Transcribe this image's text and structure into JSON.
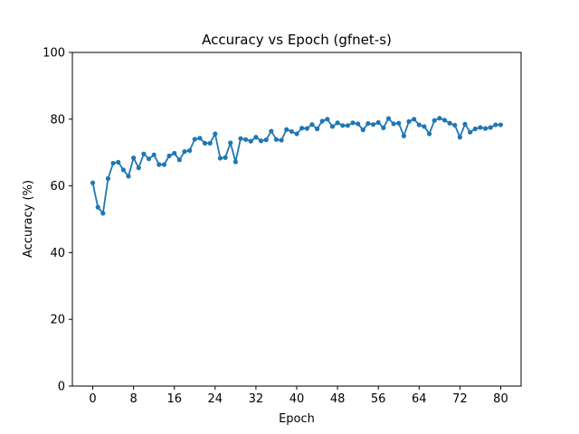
{
  "chart_data": {
    "type": "line",
    "title": "Accuracy vs Epoch  (gfnet-s)",
    "xlabel": "Epoch",
    "ylabel": "Accuracy (%)",
    "xlim": [
      -4,
      84
    ],
    "ylim": [
      0,
      100
    ],
    "xticks": [
      0,
      8,
      16,
      24,
      32,
      40,
      48,
      56,
      64,
      72,
      80
    ],
    "yticks": [
      0,
      20,
      40,
      60,
      80,
      100
    ],
    "grid": false,
    "color": "#1f77b4",
    "marker": "circle",
    "x": [
      0,
      1,
      2,
      3,
      4,
      5,
      6,
      7,
      8,
      9,
      10,
      11,
      12,
      13,
      14,
      15,
      16,
      17,
      18,
      19,
      20,
      21,
      22,
      23,
      24,
      25,
      26,
      27,
      28,
      29,
      30,
      31,
      32,
      33,
      34,
      35,
      36,
      37,
      38,
      39,
      40,
      41,
      42,
      43,
      44,
      45,
      46,
      47,
      48,
      49,
      50,
      51,
      52,
      53,
      54,
      55,
      56,
      57,
      58,
      59,
      60,
      61,
      62,
      63,
      64,
      65,
      66,
      67,
      68,
      69,
      70,
      71,
      72,
      73,
      74,
      75,
      76,
      77,
      78,
      79,
      80
    ],
    "y": [
      60.9,
      53.6,
      51.8,
      62.2,
      66.8,
      67.1,
      64.8,
      62.9,
      68.4,
      65.4,
      69.6,
      68.1,
      69.3,
      66.4,
      66.4,
      69.0,
      69.8,
      67.8,
      70.3,
      70.6,
      74.0,
      74.3,
      72.8,
      72.8,
      75.6,
      68.3,
      68.5,
      72.9,
      67.2,
      74.2,
      73.9,
      73.4,
      74.6,
      73.5,
      73.8,
      76.4,
      73.9,
      73.7,
      76.9,
      76.3,
      75.6,
      77.3,
      77.2,
      78.4,
      77.1,
      79.4,
      80.0,
      77.8,
      78.9,
      78.1,
      78.1,
      78.9,
      78.6,
      76.8,
      78.7,
      78.4,
      79.0,
      77.4,
      80.2,
      78.6,
      78.8,
      75.0,
      79.3,
      80.0,
      78.3,
      77.8,
      75.6,
      79.6,
      80.3,
      79.7,
      78.8,
      78.2,
      74.6,
      78.5,
      76.1,
      77.1,
      77.5,
      77.2,
      77.5,
      78.3,
      78.3
    ]
  }
}
